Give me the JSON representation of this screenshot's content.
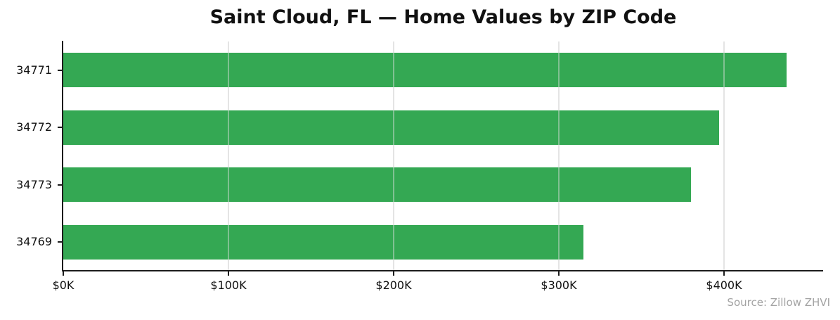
{
  "title": "Saint Cloud, FL — Home Values by ZIP Code",
  "source_note": "Source: Zillow ZHVI",
  "colors": {
    "bar": "#34a853",
    "grid": "#e8e8e8",
    "grid_overlay": "rgba(225,225,225,0.45)",
    "axis": "#1c1c1c",
    "text": "#111111",
    "source_text": "#a3a3a3"
  },
  "chart_data": {
    "type": "bar",
    "orientation": "horizontal",
    "title": "Saint Cloud, FL — Home Values by ZIP Code",
    "categories": [
      "34771",
      "34772",
      "34773",
      "34769"
    ],
    "values": [
      438,
      397,
      380,
      315
    ],
    "value_unit": "thousand USD",
    "xlabel": "",
    "ylabel": "",
    "xlim": [
      0,
      460
    ],
    "xticks": [
      0,
      100,
      200,
      300,
      400
    ],
    "xtick_labels": [
      "$0K",
      "$100K",
      "$200K",
      "$300K",
      "$400K"
    ],
    "grid": true,
    "legend": false,
    "annotation": "Source: Zillow ZHVI"
  }
}
